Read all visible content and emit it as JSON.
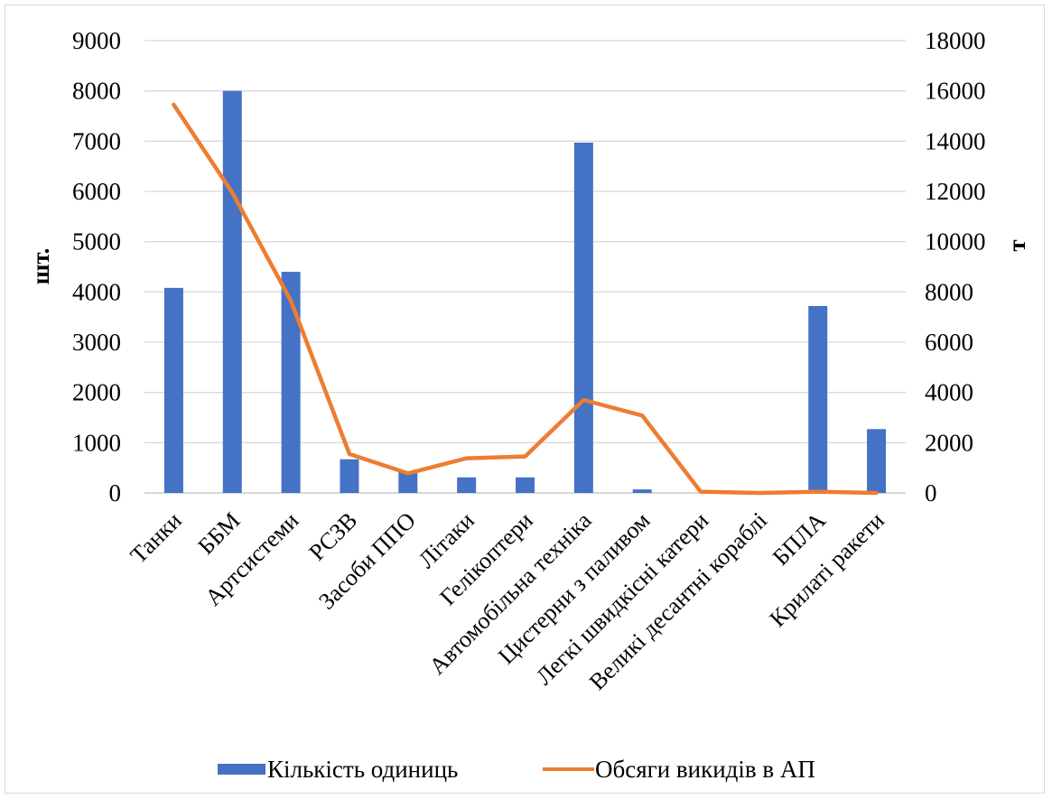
{
  "chart_data": {
    "type": "bar",
    "categories": [
      "Танки",
      "ББМ",
      "Артсистеми",
      "РСЗВ",
      "Засоби ППО",
      "Літаки",
      "Гелікоптери",
      "Автомобільна техніка",
      "Цистерни з паливом",
      "Легкі швидкісні катери",
      "Великі десантні кораблі",
      "БПЛА",
      "Крилаті ракети"
    ],
    "series": [
      {
        "name": "Кількість одиниць",
        "type": "bar",
        "axis": "left",
        "color": "#4472c4",
        "values": [
          4080,
          8000,
          4400,
          670,
          430,
          310,
          310,
          6970,
          70,
          0,
          0,
          3720,
          1270
        ]
      },
      {
        "name": "Обсяги викидів в АП",
        "type": "line",
        "axis": "right",
        "color": "#ed7d31",
        "values": [
          15450,
          11950,
          7650,
          1550,
          780,
          1380,
          1450,
          3700,
          3080,
          50,
          0,
          50,
          0
        ]
      }
    ],
    "ylabel": "шт.",
    "y2label": "т",
    "ylim": [
      0,
      9000
    ],
    "y2lim": [
      0,
      18000
    ],
    "yticks": [
      "0",
      "1000",
      "2000",
      "3000",
      "4000",
      "5000",
      "6000",
      "7000",
      "8000",
      "9000"
    ],
    "y2ticks": [
      "0",
      "2000",
      "4000",
      "6000",
      "8000",
      "10000",
      "12000",
      "14000",
      "16000",
      "18000"
    ],
    "grid": true,
    "legend_position": "bottom"
  }
}
